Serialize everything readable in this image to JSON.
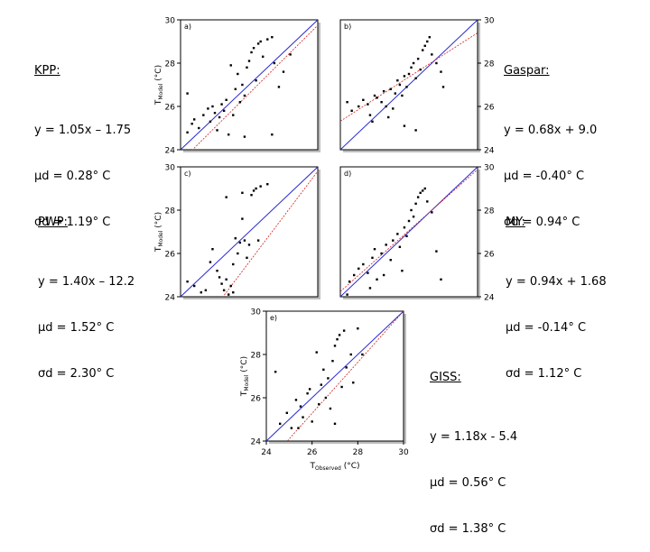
{
  "chart_data": [
    {
      "type": "scatter",
      "panel": "a)",
      "model": "KPP:",
      "stats": [
        "y = 1.05x – 1.75",
        "μd = 0.28° C",
        "σd = 1.19° C"
      ],
      "ylabel": "T_Model (°C)",
      "xlim": [
        24,
        30
      ],
      "ylim": [
        24,
        30
      ],
      "yticks": [
        24,
        26,
        28,
        30
      ],
      "fit": {
        "slope": 1.05,
        "intercept": -1.75
      },
      "colors": {
        "one_to_one": "#2a2ad0",
        "fit": "#d02020",
        "points": "#000000"
      },
      "points": [
        [
          24.3,
          24.8
        ],
        [
          24.5,
          25.2
        ],
        [
          24.6,
          25.4
        ],
        [
          24.8,
          25.0
        ],
        [
          25.0,
          25.6
        ],
        [
          25.2,
          25.9
        ],
        [
          25.3,
          25.3
        ],
        [
          25.4,
          26.0
        ],
        [
          25.5,
          25.7
        ],
        [
          25.6,
          24.9
        ],
        [
          25.7,
          25.5
        ],
        [
          25.8,
          26.1
        ],
        [
          25.9,
          25.8
        ],
        [
          26.0,
          26.3
        ],
        [
          26.1,
          24.7
        ],
        [
          26.2,
          27.9
        ],
        [
          26.3,
          25.6
        ],
        [
          26.4,
          26.8
        ],
        [
          26.5,
          27.5
        ],
        [
          26.6,
          26.2
        ],
        [
          26.7,
          27.0
        ],
        [
          26.8,
          26.5
        ],
        [
          26.9,
          27.8
        ],
        [
          27.0,
          28.1
        ],
        [
          27.1,
          28.5
        ],
        [
          27.2,
          28.7
        ],
        [
          27.3,
          27.2
        ],
        [
          27.4,
          28.9
        ],
        [
          27.5,
          29.0
        ],
        [
          27.6,
          28.3
        ],
        [
          27.8,
          29.1
        ],
        [
          28.0,
          29.2
        ],
        [
          28.1,
          28.0
        ],
        [
          28.3,
          26.9
        ],
        [
          28.5,
          27.6
        ],
        [
          28.8,
          28.4
        ],
        [
          28.0,
          24.7
        ],
        [
          26.8,
          24.6
        ],
        [
          24.3,
          26.6
        ]
      ]
    },
    {
      "type": "scatter",
      "panel": "b)",
      "model": "Gaspar:",
      "stats": [
        "y = 0.68x + 9.0",
        "μd = -0.40° C",
        "σd = 0.94° C"
      ],
      "ylabel": "T_Model (°C)",
      "xlim": [
        24,
        30
      ],
      "ylim": [
        24,
        30
      ],
      "yticks": [
        24,
        26,
        28,
        30
      ],
      "fit": {
        "slope": 0.68,
        "intercept": 9.0
      },
      "colors": {
        "one_to_one": "#2a2ad0",
        "fit": "#d02020",
        "points": "#000000"
      },
      "points": [
        [
          24.5,
          25.8
        ],
        [
          24.8,
          26.0
        ],
        [
          25.0,
          26.3
        ],
        [
          25.2,
          26.1
        ],
        [
          25.3,
          25.6
        ],
        [
          25.5,
          26.5
        ],
        [
          25.6,
          26.4
        ],
        [
          25.8,
          26.2
        ],
        [
          25.9,
          26.7
        ],
        [
          26.0,
          26.0
        ],
        [
          26.1,
          25.5
        ],
        [
          26.2,
          26.8
        ],
        [
          26.3,
          25.9
        ],
        [
          26.4,
          26.6
        ],
        [
          26.5,
          27.2
        ],
        [
          26.6,
          27.0
        ],
        [
          26.7,
          26.5
        ],
        [
          26.8,
          27.4
        ],
        [
          26.9,
          26.9
        ],
        [
          27.0,
          27.5
        ],
        [
          27.1,
          27.8
        ],
        [
          27.2,
          28.0
        ],
        [
          27.3,
          27.3
        ],
        [
          27.4,
          28.2
        ],
        [
          27.5,
          27.7
        ],
        [
          27.6,
          28.6
        ],
        [
          27.7,
          28.8
        ],
        [
          27.8,
          29.0
        ],
        [
          27.9,
          29.2
        ],
        [
          28.0,
          28.4
        ],
        [
          28.2,
          28.0
        ],
        [
          28.4,
          27.6
        ],
        [
          28.5,
          26.9
        ],
        [
          26.8,
          25.1
        ],
        [
          27.3,
          24.9
        ],
        [
          25.4,
          25.3
        ],
        [
          24.3,
          26.2
        ]
      ]
    },
    {
      "type": "scatter",
      "panel": "c)",
      "model": "PWP:",
      "stats": [
        "y = 1.40x – 12.2",
        "μd = 1.52° C",
        "σd = 2.30° C"
      ],
      "ylabel": "T_Model (°C)",
      "xlim": [
        24,
        30
      ],
      "ylim": [
        24,
        30
      ],
      "yticks": [
        24,
        26,
        28,
        30
      ],
      "fit": {
        "slope": 1.4,
        "intercept": -12.2
      },
      "colors": {
        "one_to_one": "#2a2ad0",
        "fit": "#d02020",
        "points": "#000000"
      },
      "points": [
        [
          24.3,
          24.7
        ],
        [
          24.6,
          24.5
        ],
        [
          24.9,
          24.2
        ],
        [
          25.1,
          24.3
        ],
        [
          25.3,
          25.6
        ],
        [
          25.4,
          26.2
        ],
        [
          25.6,
          25.2
        ],
        [
          25.8,
          24.6
        ],
        [
          25.9,
          24.3
        ],
        [
          26.0,
          24.8
        ],
        [
          26.1,
          24.1
        ],
        [
          26.2,
          24.5
        ],
        [
          26.3,
          25.5
        ],
        [
          26.4,
          26.7
        ],
        [
          26.5,
          26.0
        ],
        [
          26.6,
          26.5
        ],
        [
          26.7,
          27.6
        ],
        [
          26.8,
          26.6
        ],
        [
          26.9,
          25.8
        ],
        [
          27.0,
          26.4
        ],
        [
          27.1,
          28.7
        ],
        [
          27.2,
          28.9
        ],
        [
          27.3,
          29.0
        ],
        [
          27.4,
          26.6
        ],
        [
          27.5,
          29.1
        ],
        [
          27.8,
          29.2
        ],
        [
          26.7,
          28.8
        ],
        [
          26.0,
          28.6
        ],
        [
          26.3,
          24.2
        ],
        [
          25.7,
          24.9
        ]
      ]
    },
    {
      "type": "scatter",
      "panel": "d)",
      "model": "MY:",
      "stats": [
        "y = 0.94x + 1.68",
        "μd = -0.14° C",
        "σd = 1.12° C"
      ],
      "ylabel": "T_Model (°C)",
      "xlim": [
        24,
        30
      ],
      "ylim": [
        24,
        30
      ],
      "yticks": [
        24,
        26,
        28,
        30
      ],
      "fit": {
        "slope": 0.94,
        "intercept": 1.68
      },
      "colors": {
        "one_to_one": "#2a2ad0",
        "fit": "#d02020",
        "points": "#000000"
      },
      "points": [
        [
          24.4,
          24.7
        ],
        [
          24.6,
          25.0
        ],
        [
          24.8,
          25.3
        ],
        [
          25.0,
          25.5
        ],
        [
          25.2,
          25.1
        ],
        [
          25.4,
          25.8
        ],
        [
          25.5,
          26.2
        ],
        [
          25.6,
          24.8
        ],
        [
          25.8,
          26.0
        ],
        [
          26.0,
          26.4
        ],
        [
          26.2,
          25.7
        ],
        [
          26.3,
          26.6
        ],
        [
          26.5,
          26.9
        ],
        [
          26.6,
          26.3
        ],
        [
          26.8,
          27.2
        ],
        [
          26.9,
          26.8
        ],
        [
          27.0,
          27.5
        ],
        [
          27.1,
          28.0
        ],
        [
          27.2,
          27.7
        ],
        [
          27.3,
          28.3
        ],
        [
          27.4,
          28.6
        ],
        [
          27.5,
          28.8
        ],
        [
          27.6,
          28.9
        ],
        [
          27.7,
          29.0
        ],
        [
          27.8,
          28.4
        ],
        [
          28.0,
          27.9
        ],
        [
          28.2,
          26.1
        ],
        [
          28.4,
          24.8
        ],
        [
          25.3,
          24.4
        ],
        [
          26.7,
          25.2
        ],
        [
          24.3,
          24.1
        ],
        [
          25.9,
          25.0
        ]
      ]
    },
    {
      "type": "scatter",
      "panel": "e)",
      "model": "GISS:",
      "stats": [
        "y = 1.18x - 5.4",
        "μd = 0.56° C",
        "σd = 1.38° C"
      ],
      "xlabel": "T_Observed (°C)",
      "ylabel": "T_Model (°C)",
      "xlim": [
        24,
        30
      ],
      "ylim": [
        24,
        30
      ],
      "xticks": [
        24,
        26,
        28,
        30
      ],
      "yticks": [
        24,
        26,
        28,
        30
      ],
      "fit": {
        "slope": 1.18,
        "intercept": -5.4
      },
      "colors": {
        "one_to_one": "#2a2ad0",
        "fit": "#d02020",
        "points": "#000000"
      },
      "points": [
        [
          24.4,
          27.2
        ],
        [
          24.6,
          24.8
        ],
        [
          24.9,
          25.3
        ],
        [
          25.1,
          24.6
        ],
        [
          25.3,
          25.9
        ],
        [
          25.5,
          25.6
        ],
        [
          25.6,
          25.1
        ],
        [
          25.8,
          26.2
        ],
        [
          25.9,
          26.4
        ],
        [
          26.0,
          24.9
        ],
        [
          26.2,
          28.1
        ],
        [
          26.3,
          25.7
        ],
        [
          26.4,
          26.6
        ],
        [
          26.5,
          27.3
        ],
        [
          26.6,
          26.0
        ],
        [
          26.7,
          26.9
        ],
        [
          26.8,
          25.5
        ],
        [
          26.9,
          27.7
        ],
        [
          27.0,
          28.4
        ],
        [
          27.1,
          28.7
        ],
        [
          27.2,
          28.9
        ],
        [
          27.3,
          26.5
        ],
        [
          27.4,
          29.1
        ],
        [
          27.5,
          27.4
        ],
        [
          27.7,
          28.0
        ],
        [
          27.8,
          26.7
        ],
        [
          28.0,
          29.2
        ],
        [
          28.2,
          28.0
        ],
        [
          27.0,
          24.8
        ],
        [
          25.4,
          24.6
        ]
      ]
    }
  ]
}
